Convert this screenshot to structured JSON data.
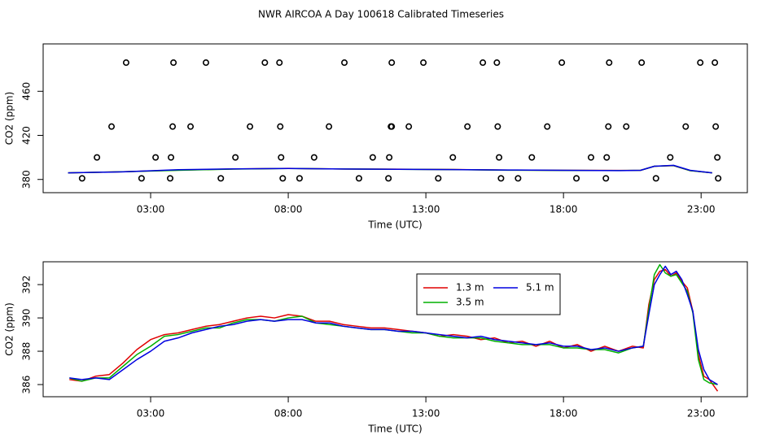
{
  "title": "NWR AIRCOA A  Day 100618  Calibrated Timeseries",
  "chart_data": [
    {
      "type": "line",
      "xlabel": "Time (UTC)",
      "ylabel": "CO2 (ppm)",
      "xlim": [
        -0.905,
        24.68
      ],
      "ylim": [
        368,
        503
      ],
      "xticks": [
        {
          "value": 3,
          "label": "03:00"
        },
        {
          "value": 8,
          "label": "08:00"
        },
        {
          "value": 13,
          "label": "13:00"
        },
        {
          "value": 18,
          "label": "18:00"
        },
        {
          "value": 23,
          "label": "23:00"
        }
      ],
      "yticks": [
        380,
        420,
        460
      ],
      "series": [
        {
          "type": "scatter",
          "color": "#000000",
          "x": [
            2.11,
            3.83,
            5.01,
            7.15,
            7.68,
            10.04,
            11.76,
            12.91,
            15.07,
            15.58,
            17.94,
            19.66,
            20.84,
            22.97,
            23.5,
            1.58,
            3.8,
            4.45,
            6.61,
            7.71,
            9.48,
            11.73,
            11.76,
            12.38,
            14.51,
            15.61,
            17.41,
            19.63,
            20.28,
            22.44,
            23.53,
            1.05,
            3.18,
            3.74,
            6.08,
            7.74,
            8.94,
            11.07,
            11.67,
            13.98,
            15.66,
            16.85,
            19.0,
            19.57,
            21.88,
            23.59,
            0.51,
            2.67,
            3.71,
            5.55,
            7.8,
            8.41,
            10.57,
            11.64,
            13.45,
            15.73,
            16.35,
            18.47,
            19.54,
            21.36,
            23.62
          ],
          "values": [
            486,
            486,
            486,
            486,
            486,
            486,
            486,
            486,
            486,
            486,
            486,
            486,
            486,
            486,
            486,
            428,
            428,
            428,
            428,
            428,
            428,
            428,
            428,
            428,
            428,
            428,
            428,
            428,
            428,
            428,
            428,
            400,
            400,
            400,
            400,
            400,
            400,
            400,
            400,
            400,
            400,
            400,
            400,
            400,
            400,
            400,
            381,
            381,
            381,
            381,
            381,
            381,
            381,
            381,
            381,
            381,
            381,
            381,
            381,
            381,
            381
          ]
        },
        {
          "type": "line",
          "color": "#e00000",
          "x": [
            0,
            2,
            4,
            6,
            8,
            10,
            12,
            14,
            16,
            18,
            20,
            20.8,
            21.3,
            22,
            22.6,
            23.4
          ],
          "values": [
            386,
            387,
            388.5,
            389.5,
            390,
            389.5,
            389.3,
            389,
            388.5,
            388.3,
            388.2,
            388.3,
            392,
            392.5,
            388,
            386
          ]
        },
        {
          "type": "line",
          "color": "#00b000",
          "x": [
            0,
            2,
            4,
            6,
            8,
            10,
            12,
            14,
            16,
            18,
            20,
            20.8,
            21.3,
            22,
            22.6,
            23.4
          ],
          "values": [
            386,
            387,
            388.3,
            389.4,
            389.9,
            389.5,
            389.2,
            388.9,
            388.4,
            388.2,
            388.1,
            388.3,
            392,
            392.6,
            388,
            386
          ]
        },
        {
          "type": "line",
          "color": "#0000e0",
          "x": [
            0,
            2,
            4,
            6,
            8,
            10,
            12,
            14,
            16,
            18,
            20,
            20.8,
            21.3,
            22,
            22.6,
            23.4
          ],
          "values": [
            386,
            386.9,
            388.8,
            389.6,
            389.9,
            389.5,
            389.2,
            388.9,
            388.6,
            388.3,
            388,
            388.3,
            392,
            392.8,
            388.3,
            386
          ]
        }
      ]
    },
    {
      "type": "line",
      "xlabel": "Time (UTC)",
      "ylabel": "CO2 (ppm)",
      "xlim": [
        -0.905,
        24.68
      ],
      "ylim": [
        385.27,
        393.37
      ],
      "xticks": [
        {
          "value": 3,
          "label": "03:00"
        },
        {
          "value": 8,
          "label": "08:00"
        },
        {
          "value": 13,
          "label": "13:00"
        },
        {
          "value": 18,
          "label": "18:00"
        },
        {
          "value": 23,
          "label": "23:00"
        }
      ],
      "yticks": [
        386,
        388,
        390,
        392
      ],
      "legend": "top",
      "series": [
        {
          "type": "line",
          "name": "1.3 m",
          "color": "#e00000",
          "x": [
            0.05,
            0.5,
            1,
            1.5,
            2,
            2.5,
            3,
            3.5,
            4,
            4.5,
            5,
            5.5,
            6,
            6.5,
            7,
            7.5,
            8,
            8.5,
            9,
            9.5,
            10,
            10.5,
            11,
            11.5,
            12,
            12.5,
            13,
            13.5,
            14,
            14.5,
            15,
            15.5,
            16,
            16.5,
            17,
            17.5,
            18,
            18.5,
            19,
            19.5,
            20,
            20.5,
            20.9,
            21.1,
            21.3,
            21.5,
            21.7,
            21.9,
            22.1,
            22.3,
            22.5,
            22.7,
            22.9,
            23.1,
            23.3,
            23.6
          ],
          "values": [
            386.3,
            386.2,
            386.5,
            386.6,
            387.3,
            388.1,
            388.7,
            389.0,
            389.1,
            389.3,
            389.5,
            389.6,
            389.8,
            390.0,
            390.1,
            390.0,
            390.2,
            390.1,
            389.8,
            389.8,
            389.6,
            389.5,
            389.4,
            389.4,
            389.3,
            389.2,
            389.1,
            388.9,
            389.0,
            388.9,
            388.7,
            388.8,
            388.5,
            388.6,
            388.3,
            388.6,
            388.2,
            388.4,
            388.0,
            388.3,
            388.0,
            388.3,
            388.2,
            390.8,
            392.3,
            392.8,
            392.9,
            392.5,
            392.7,
            392.2,
            391.8,
            390.4,
            387.8,
            386.5,
            386.3,
            385.6
          ]
        },
        {
          "type": "line",
          "name": "3.5 m",
          "color": "#00b000",
          "x": [
            0.05,
            0.5,
            1,
            1.5,
            2,
            2.5,
            3,
            3.5,
            4,
            4.5,
            5,
            5.5,
            6,
            6.5,
            7,
            7.5,
            8,
            8.5,
            9,
            9.5,
            10,
            10.5,
            11,
            11.5,
            12,
            12.5,
            13,
            13.5,
            14,
            14.5,
            15,
            15.5,
            16,
            16.5,
            17,
            17.5,
            18,
            18.5,
            19,
            19.5,
            20,
            20.5,
            20.9,
            21.1,
            21.3,
            21.5,
            21.7,
            21.9,
            22.1,
            22.3,
            22.5,
            22.7,
            22.9,
            23.1,
            23.3,
            23.6
          ],
          "values": [
            386.4,
            386.2,
            386.4,
            386.4,
            387.1,
            387.8,
            388.3,
            388.9,
            389.0,
            389.2,
            389.4,
            389.4,
            389.7,
            389.9,
            389.9,
            389.8,
            390.0,
            390.1,
            389.7,
            389.6,
            389.5,
            389.4,
            389.3,
            389.3,
            389.2,
            389.1,
            389.1,
            388.9,
            388.8,
            388.8,
            388.8,
            388.6,
            388.5,
            388.4,
            388.4,
            388.4,
            388.2,
            388.2,
            388.1,
            388.1,
            387.9,
            388.2,
            388.3,
            390.5,
            392.6,
            393.2,
            392.7,
            392.5,
            392.6,
            392.1,
            391.6,
            390.3,
            387.5,
            386.3,
            386.1,
            386.0
          ]
        },
        {
          "type": "line",
          "name": "5.1 m",
          "color": "#0000e0",
          "x": [
            0.05,
            0.5,
            1,
            1.5,
            2,
            2.5,
            3,
            3.5,
            4,
            4.5,
            5,
            5.5,
            6,
            6.5,
            7,
            7.5,
            8,
            8.5,
            9,
            9.5,
            10,
            10.5,
            11,
            11.5,
            12,
            12.5,
            13,
            13.5,
            14,
            14.5,
            15,
            15.5,
            16,
            16.5,
            17,
            17.5,
            18,
            18.5,
            19,
            19.5,
            20,
            20.5,
            20.9,
            21.1,
            21.3,
            21.5,
            21.7,
            21.9,
            22.1,
            22.3,
            22.5,
            22.7,
            22.9,
            23.1,
            23.3,
            23.6
          ],
          "values": [
            386.4,
            386.3,
            386.4,
            386.3,
            386.9,
            387.5,
            388.0,
            388.6,
            388.8,
            389.1,
            389.3,
            389.5,
            389.6,
            389.8,
            389.9,
            389.8,
            389.9,
            389.9,
            389.7,
            389.7,
            389.5,
            389.4,
            389.3,
            389.3,
            389.2,
            389.2,
            389.1,
            389.0,
            388.9,
            388.8,
            388.9,
            388.7,
            388.6,
            388.5,
            388.4,
            388.5,
            388.3,
            388.3,
            388.1,
            388.2,
            388.0,
            388.2,
            388.3,
            390.2,
            392.0,
            392.6,
            393.1,
            392.6,
            392.8,
            392.3,
            391.4,
            390.4,
            388.1,
            386.9,
            386.3,
            386.0
          ]
        }
      ]
    }
  ]
}
